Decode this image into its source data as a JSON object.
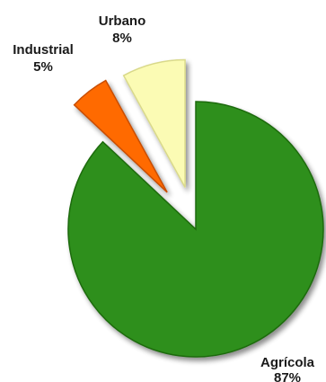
{
  "chart_data": {
    "type": "pie",
    "title": "",
    "exploded": true,
    "slices": [
      {
        "label": "Agrícola",
        "value": 87,
        "value_label": "87%",
        "color": "#2f8f1a",
        "edge_color": "#1e6a0e"
      },
      {
        "label": "Industrial",
        "value": 5,
        "value_label": "5%",
        "color": "#ff6a00",
        "edge_color": "#c84d00"
      },
      {
        "label": "Urbano",
        "value": 8,
        "value_label": "8%",
        "color": "#fbfbb4",
        "edge_color": "#d9d98a"
      }
    ]
  }
}
